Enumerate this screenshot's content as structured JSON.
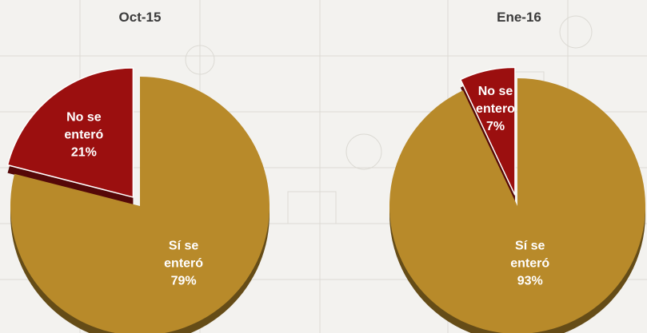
{
  "colors": {
    "si": "#b88a2a",
    "no": "#9b0f0f",
    "background": "#f3f2ef"
  },
  "chart_data": [
    {
      "type": "pie",
      "title": "Oct-15",
      "slices": [
        {
          "label_lines": [
            "No se",
            "enteró"
          ],
          "value": 21,
          "value_label": "21%",
          "exploded": true
        },
        {
          "label_lines": [
            "Sí se",
            "enteró"
          ],
          "value": 79,
          "value_label": "79%",
          "exploded": false
        }
      ]
    },
    {
      "type": "pie",
      "title": "Ene-16",
      "slices": [
        {
          "label_lines": [
            "No se",
            "entero"
          ],
          "value": 7,
          "value_label": "7%",
          "exploded": true
        },
        {
          "label_lines": [
            "Sí se",
            "enteró"
          ],
          "value": 93,
          "value_label": "93%",
          "exploded": false
        }
      ]
    }
  ]
}
